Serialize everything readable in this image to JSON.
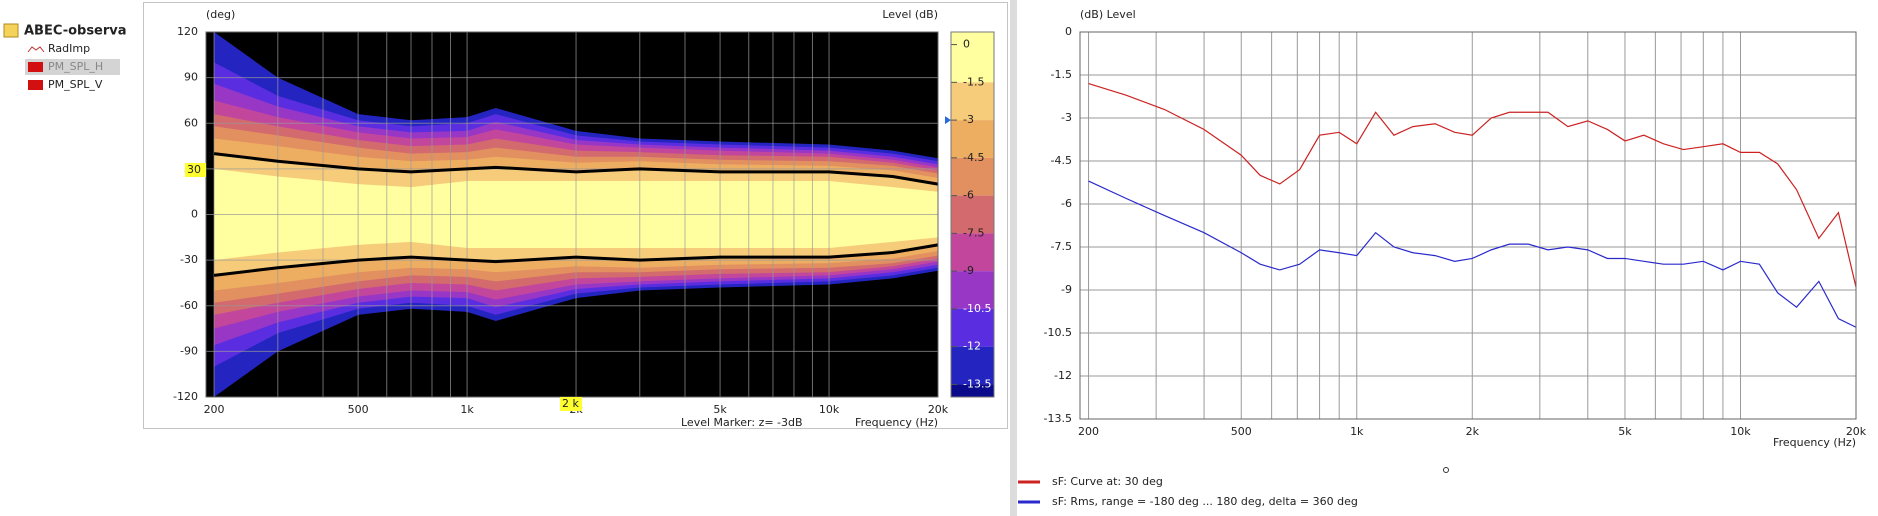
{
  "tree": {
    "root": "ABEC-observa",
    "items": [
      "RadImp",
      "PM_SPL_H",
      "PM_SPL_V"
    ]
  },
  "chart_data": [
    {
      "type": "contour",
      "y_label": "(deg)",
      "z_label": "Level  (dB)",
      "x_label": "Frequency  (Hz)",
      "marker_text": "Level Marker:  z= -3dB",
      "marker": -3,
      "cursor_y": "30",
      "cursor_x": "2 k",
      "log_x": true,
      "xlim": [
        190,
        20000
      ],
      "ylim": [
        -120,
        120
      ],
      "xticks": [
        200,
        500,
        {
          "value": 1000,
          "label": "1k"
        },
        {
          "value": 2000,
          "label": "2k"
        },
        {
          "value": 5000,
          "label": "5k"
        },
        {
          "value": 10000,
          "label": "10k"
        },
        {
          "value": 20000,
          "label": "20k"
        }
      ],
      "xminor": [
        300,
        400,
        600,
        700,
        800,
        900,
        3000,
        4000,
        6000,
        7000,
        8000,
        9000
      ],
      "yticks": [
        -120,
        -90,
        -60,
        -30,
        0,
        30,
        60,
        90,
        120
      ],
      "background": "#000000",
      "x": [
        200,
        300,
        500,
        700,
        1000,
        1200,
        2000,
        3000,
        5000,
        10000,
        15000,
        20000
      ],
      "colorbar": {
        "clim": [
          0.5,
          -14
        ],
        "ticks": [
          0,
          -1.5,
          -3,
          -4.5,
          -6,
          -7.5,
          -9,
          -10.5,
          -12,
          -13.5
        ],
        "colors": [
          "#ffffa0",
          "#f6cb7a",
          "#eeae62",
          "#e39060",
          "#d26a6e",
          "#c2469c",
          "#9836c6",
          "#5a2ee0",
          "#2424c0",
          "#0a0a8a"
        ]
      },
      "contours": [
        [
          30,
          25,
          20,
          18,
          22,
          22,
          22,
          22,
          22,
          22,
          18,
          15
        ],
        [
          40,
          35,
          30,
          28,
          30,
          31,
          28,
          30,
          28,
          28,
          25,
          20
        ],
        [
          50,
          45,
          38,
          35,
          36,
          38,
          34,
          35,
          33,
          32,
          29,
          24
        ],
        [
          58,
          52,
          44,
          40,
          41,
          44,
          38,
          38,
          36,
          35,
          32,
          27
        ],
        [
          66,
          58,
          49,
          45,
          46,
          50,
          42,
          41,
          39,
          38,
          34,
          29
        ],
        [
          75,
          64,
          54,
          50,
          51,
          56,
          46,
          44,
          42,
          40,
          36,
          31
        ],
        [
          86,
          71,
          58,
          54,
          55,
          61,
          49,
          46,
          44,
          42,
          38,
          33
        ],
        [
          100,
          78,
          62,
          58,
          60,
          66,
          52,
          48,
          46,
          44,
          40,
          35
        ],
        [
          120,
          90,
          66,
          62,
          64,
          70,
          55,
          50,
          48,
          46,
          42,
          37
        ]
      ]
    },
    {
      "type": "line",
      "y_label": "(dB)  Level",
      "x_label": "Frequency  (Hz)",
      "log_x": true,
      "xlim": [
        190,
        20000
      ],
      "ylim": [
        -13.5,
        0
      ],
      "grid": true,
      "xticks": [
        200,
        500,
        {
          "value": 1000,
          "label": "1k"
        },
        {
          "value": 2000,
          "label": "2k"
        },
        {
          "value": 5000,
          "label": "5k"
        },
        {
          "value": 10000,
          "label": "10k"
        },
        {
          "value": 20000,
          "label": "20k"
        }
      ],
      "xminor": [
        300,
        400,
        600,
        700,
        800,
        900,
        3000,
        4000,
        6000,
        7000,
        8000,
        9000
      ],
      "yticks": [
        -13.5,
        -12,
        -10.5,
        -9,
        -7.5,
        -6,
        -4.5,
        -3,
        -1.5,
        0
      ],
      "x": [
        200,
        250,
        315,
        400,
        500,
        560,
        630,
        710,
        800,
        900,
        1000,
        1120,
        1250,
        1400,
        1600,
        1800,
        2000,
        2240,
        2500,
        2800,
        3150,
        3550,
        4000,
        4500,
        5000,
        5600,
        6300,
        7100,
        8000,
        9000,
        10000,
        11200,
        12500,
        14000,
        16000,
        18000,
        20000
      ],
      "series": [
        {
          "name": "sF: Curve at: 30 deg",
          "color": "#cc2222",
          "values": [
            -1.8,
            -2.2,
            -2.7,
            -3.4,
            -4.3,
            -5.0,
            -5.3,
            -4.8,
            -3.6,
            -3.5,
            -3.9,
            -2.8,
            -3.6,
            -3.3,
            -3.2,
            -3.5,
            -3.6,
            -3.0,
            -2.8,
            -2.8,
            -2.8,
            -3.3,
            -3.1,
            -3.4,
            -3.8,
            -3.6,
            -3.9,
            -4.1,
            -4.0,
            -3.9,
            -4.2,
            -4.2,
            -4.6,
            -5.5,
            -7.2,
            -6.3,
            -8.9
          ]
        },
        {
          "name": "sF: Rms, range = -180 deg ... 180 deg, delta = 360 deg",
          "color": "#2a2acc",
          "values": [
            -5.2,
            -5.8,
            -6.4,
            -7.0,
            -7.7,
            -8.1,
            -8.3,
            -8.1,
            -7.6,
            -7.7,
            -7.8,
            -7.0,
            -7.5,
            -7.7,
            -7.8,
            -8.0,
            -7.9,
            -7.6,
            -7.4,
            -7.4,
            -7.6,
            -7.5,
            -7.6,
            -7.9,
            -7.9,
            -8.0,
            -8.1,
            -8.1,
            -8.0,
            -8.3,
            -8.0,
            -8.1,
            -9.1,
            -9.6,
            -8.7,
            -10.0,
            -10.3
          ]
        }
      ]
    }
  ]
}
